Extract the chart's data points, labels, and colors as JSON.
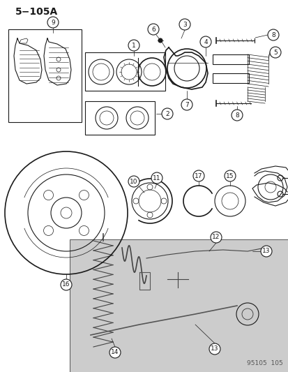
{
  "title": "5−105A",
  "bg_color": "#ffffff",
  "line_color": "#1a1a1a",
  "footer_text": "95105  105",
  "fig_width": 4.14,
  "fig_height": 5.33,
  "dpi": 100,
  "title_fontsize": 10,
  "footer_fontsize": 6.5
}
